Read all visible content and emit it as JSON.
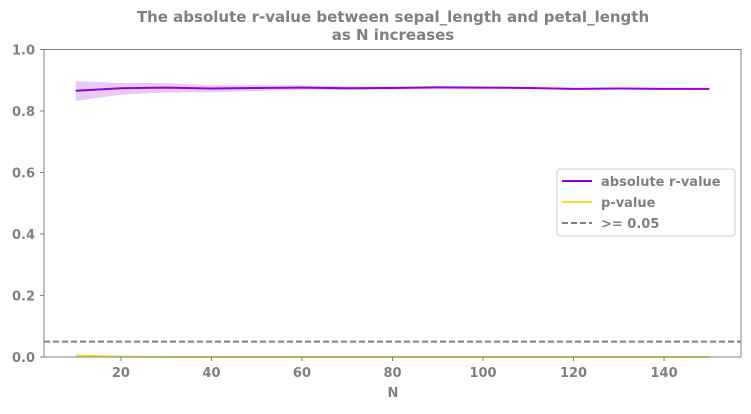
{
  "chart_data": {
    "type": "line",
    "title_line1": "The absolute r-value between sepal_length and petal_length",
    "title_line2": "as N increases",
    "xlabel": "N",
    "ylabel": "",
    "xlim": [
      3,
      157
    ],
    "ylim": [
      0.0,
      1.0
    ],
    "x_ticks": [
      20,
      40,
      60,
      80,
      100,
      120,
      140
    ],
    "x_tick_labels": [
      "20",
      "40",
      "60",
      "80",
      "100",
      "120",
      "140"
    ],
    "y_ticks": [
      0.0,
      0.2,
      0.4,
      0.6,
      0.8,
      1.0
    ],
    "y_tick_labels": [
      "0.0",
      "0.2",
      "0.4",
      "0.6",
      "0.8",
      "1.0"
    ],
    "grid": false,
    "legend_position": "center-right",
    "x": [
      10,
      20,
      30,
      40,
      50,
      60,
      70,
      80,
      90,
      100,
      110,
      120,
      130,
      140,
      150
    ],
    "series": [
      {
        "name": "absolute r-value",
        "color": "#9400D3",
        "style": "solid",
        "values": [
          0.866,
          0.874,
          0.876,
          0.873,
          0.875,
          0.876,
          0.874,
          0.875,
          0.877,
          0.876,
          0.875,
          0.872,
          0.873,
          0.872,
          0.872
        ],
        "band_lower": [
          0.833,
          0.853,
          0.86,
          0.861,
          0.865,
          0.869,
          0.868,
          0.87,
          0.872,
          0.872,
          0.872,
          0.869,
          0.871,
          0.871,
          0.872
        ],
        "band_upper": [
          0.897,
          0.891,
          0.891,
          0.884,
          0.884,
          0.884,
          0.88,
          0.88,
          0.881,
          0.88,
          0.878,
          0.875,
          0.875,
          0.874,
          0.872
        ],
        "band_color": "#D9A7F0"
      },
      {
        "name": "p-value",
        "color": "#F0E130",
        "style": "solid",
        "values": [
          0.004,
          0.001,
          0.0,
          0.0,
          0.0,
          0.0,
          0.0,
          0.0,
          0.0,
          0.0,
          0.0,
          0.0,
          0.0,
          0.0,
          0.0
        ],
        "band_lower": [
          0.0,
          0.0,
          0.0,
          0.0,
          0.0,
          0.0,
          0.0,
          0.0,
          0.0,
          0.0,
          0.0,
          0.0,
          0.0,
          0.0,
          0.0
        ],
        "band_upper": [
          0.012,
          0.004,
          0.001,
          0.0,
          0.0,
          0.0,
          0.0,
          0.0,
          0.0,
          0.0,
          0.0,
          0.0,
          0.0,
          0.0,
          0.0
        ],
        "band_color": "#F7EE8A"
      }
    ],
    "threshold": {
      "name": ">= 0.05",
      "value": 0.05,
      "color": "#808080",
      "style": "dashed"
    }
  }
}
